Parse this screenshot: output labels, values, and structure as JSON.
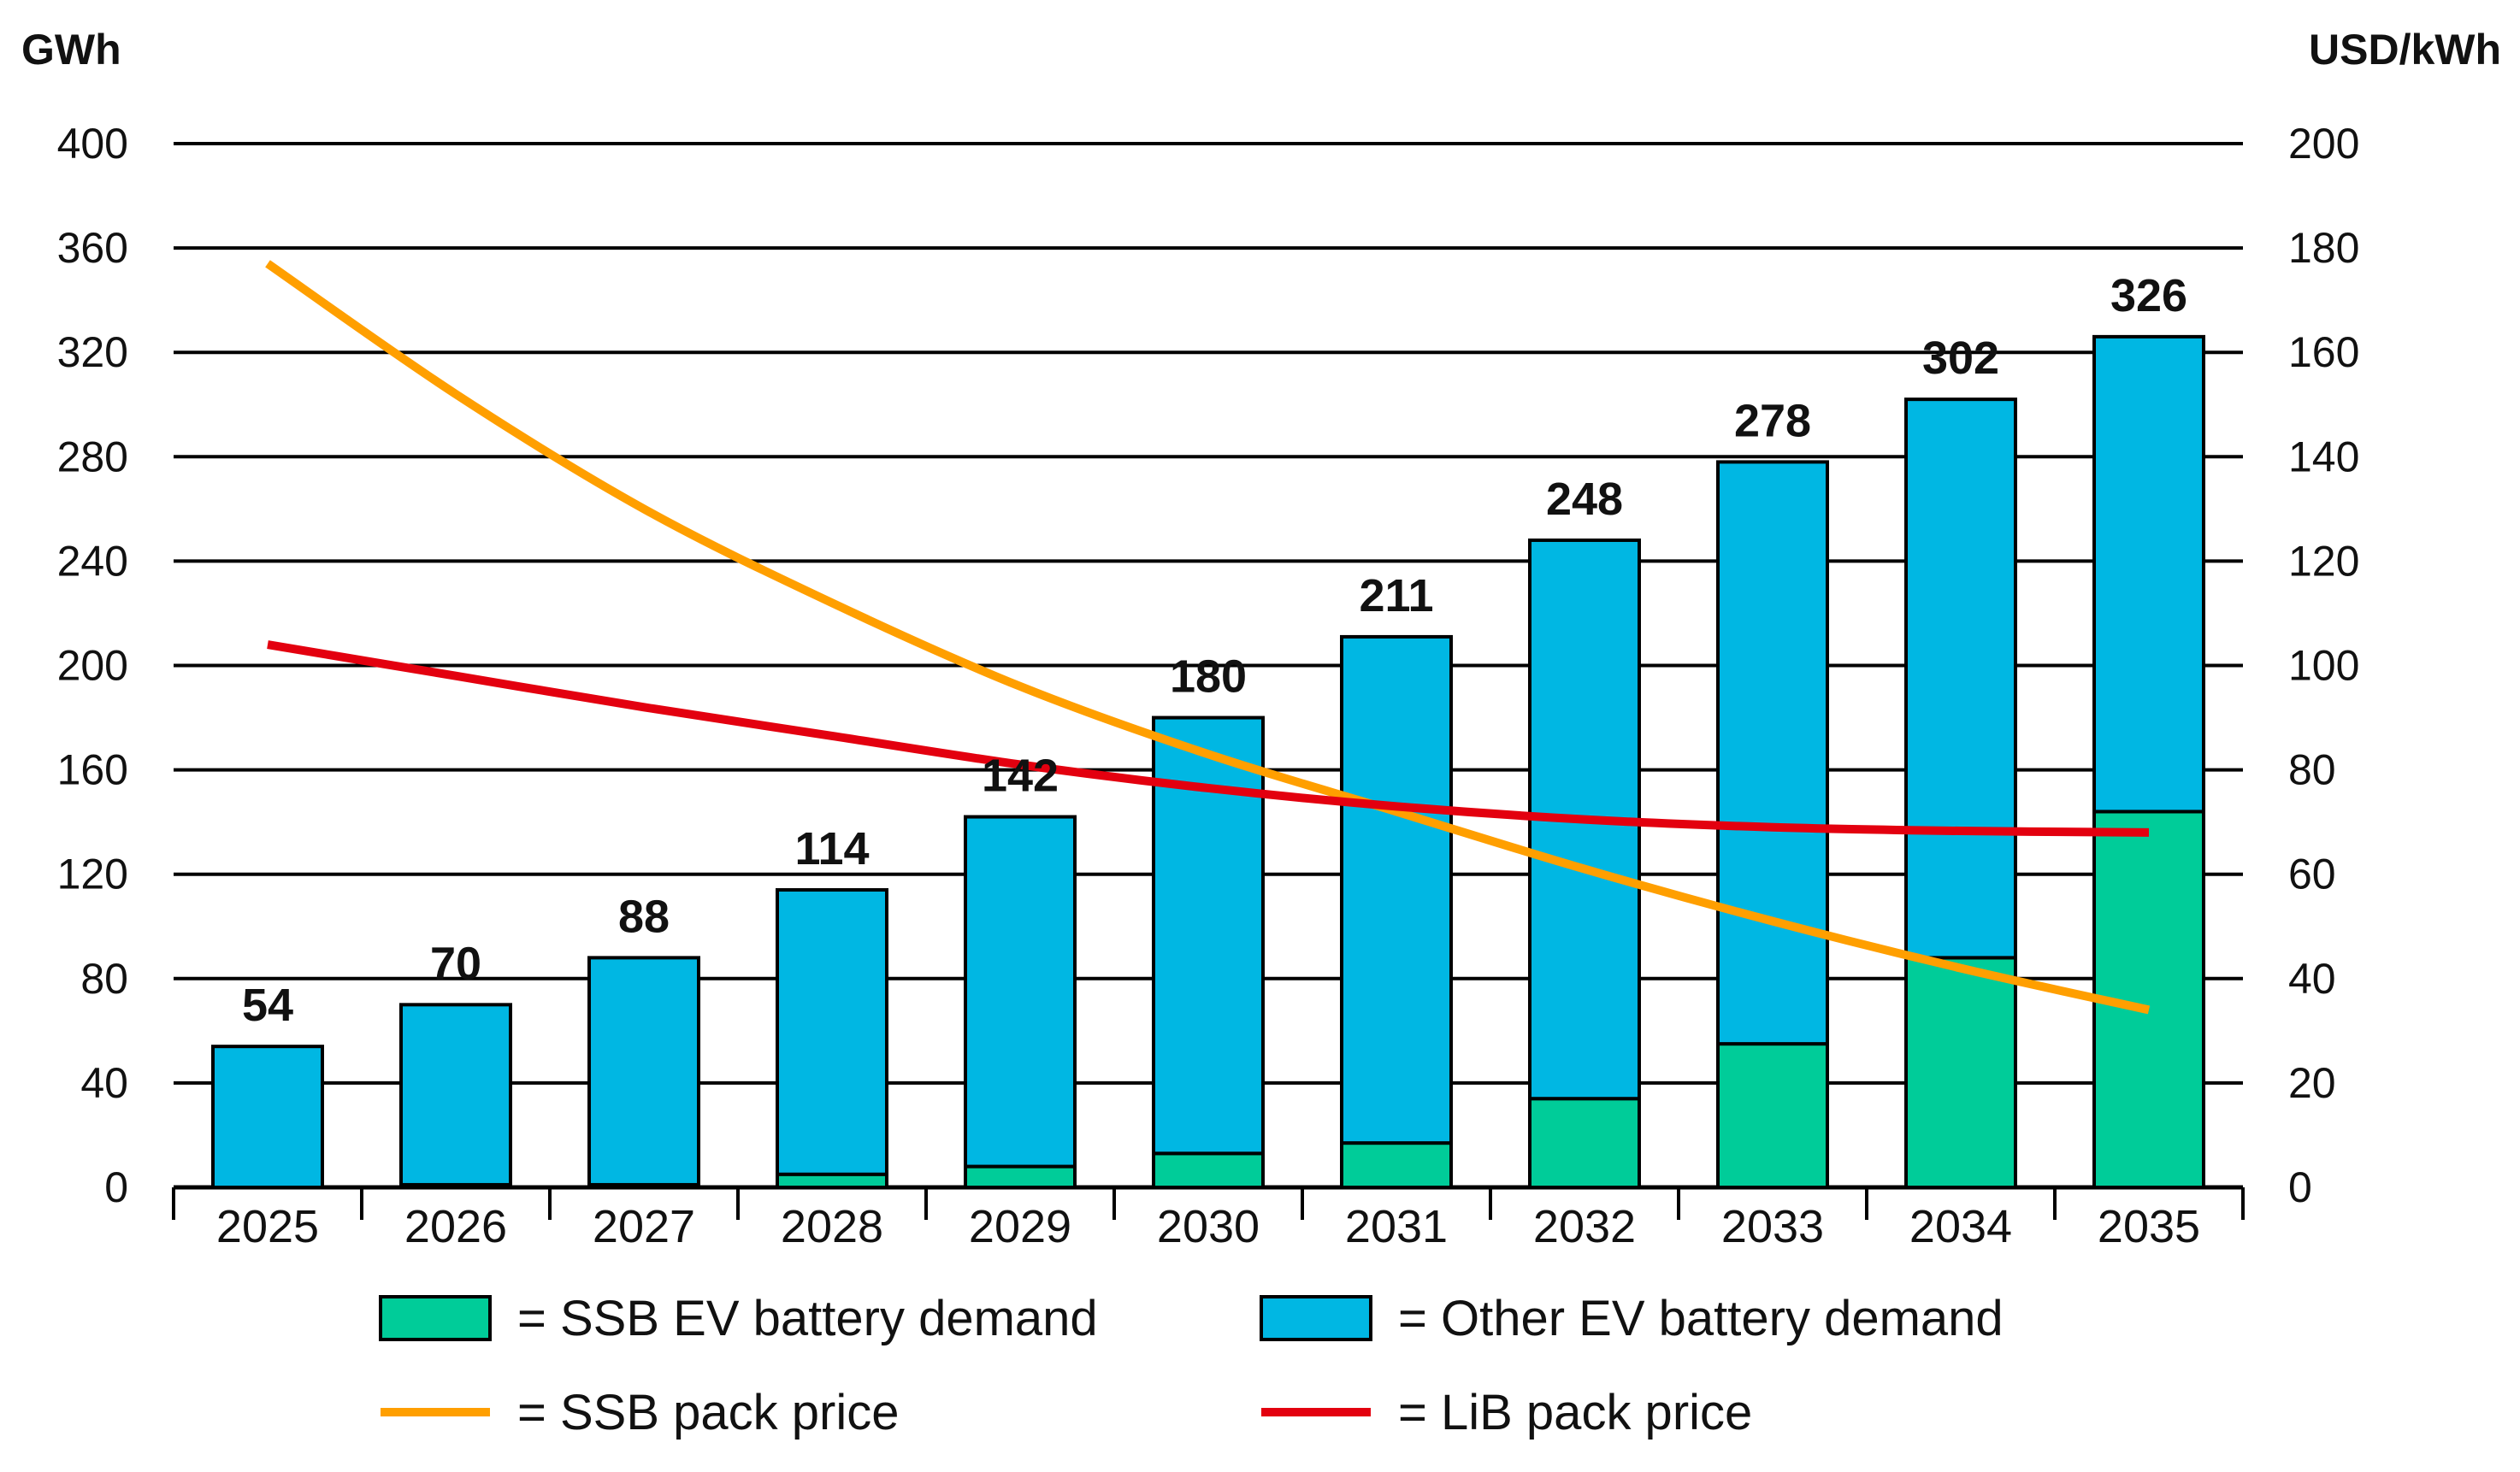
{
  "chart_data": {
    "type": "bar",
    "stacked": true,
    "categories": [
      "2025",
      "2026",
      "2027",
      "2028",
      "2029",
      "2030",
      "2031",
      "2032",
      "2033",
      "2034",
      "2035"
    ],
    "left_axis": {
      "unit_label": "GWh",
      "ylim": [
        0,
        400
      ],
      "ticks": [
        "0",
        "40",
        "80",
        "120",
        "160",
        "200",
        "240",
        "280",
        "320",
        "360",
        "400"
      ]
    },
    "right_axis": {
      "unit_label": "USD/kWh",
      "ylim": [
        0,
        200
      ],
      "ticks": [
        "0",
        "20",
        "40",
        "60",
        "80",
        "100",
        "120",
        "140",
        "160",
        "180",
        "200"
      ]
    },
    "totals": [
      "54",
      "70",
      "88",
      "114",
      "142",
      "180",
      "211",
      "248",
      "278",
      "302",
      "326"
    ],
    "series": [
      {
        "name": "= SSB EV battery demand",
        "kind": "bar",
        "axis": "left",
        "color": "#00cc99",
        "values": [
          0,
          1,
          1,
          5,
          8,
          13,
          17,
          34,
          55,
          88,
          144
        ]
      },
      {
        "name": "= Other EV battery demand",
        "kind": "bar",
        "axis": "left",
        "color": "#00b7e3",
        "values": [
          54,
          69,
          87,
          109,
          134,
          167,
          194,
          214,
          223,
          214,
          182
        ]
      },
      {
        "name": "= SSB pack price",
        "kind": "line",
        "axis": "right",
        "color": "#ff9f00",
        "values": [
          177,
          152,
          130,
          112,
          96,
          83,
          72,
          61,
          51,
          42,
          34
        ]
      },
      {
        "name": "= LiB pack price",
        "kind": "line",
        "axis": "right",
        "color": "#e3000f",
        "values": [
          104,
          98,
          92,
          86.5,
          81,
          76.5,
          73,
          70.5,
          69,
          68.3,
          68
        ]
      }
    ],
    "grid": "horizontal",
    "legend_position": "bottom"
  }
}
